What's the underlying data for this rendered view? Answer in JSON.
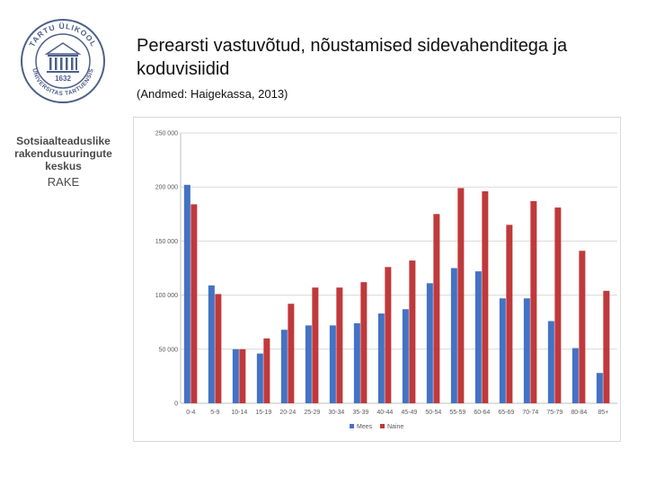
{
  "logo": {
    "ring_text": "TARTU ÜLIKOOL · UNIVERSITAS TARTUENSIS",
    "year": "1632"
  },
  "org": {
    "line1": "Sotsiaalteaduslike",
    "line2": "rakendusuuringute",
    "line3": "keskus",
    "abbr": "RAKE"
  },
  "slide": {
    "title": "Perearsti vastuvõtud, nõustamised sidevahenditega ja koduvisiidid",
    "subtitle": "(Andmed: Haigekassa, 2013)"
  },
  "colors": {
    "mees": "#4472c4",
    "naine": "#c0393b",
    "grid": "#d9d9d9",
    "axis": "#bfbfbf"
  },
  "chart_data": {
    "type": "bar",
    "title": "",
    "xlabel": "",
    "ylabel": "",
    "ylim": [
      0,
      250000
    ],
    "yticks": [
      0,
      50000,
      100000,
      150000,
      200000,
      250000
    ],
    "ytick_labels": [
      "0",
      "50 000",
      "100 000",
      "150 000",
      "200 000",
      "250 000"
    ],
    "categories": [
      "0-4",
      "5-9",
      "10-14",
      "15-19",
      "20-24",
      "25-29",
      "30-34",
      "35-39",
      "40-44",
      "45-49",
      "50-54",
      "55-59",
      "60-64",
      "65-69",
      "70-74",
      "75-79",
      "80-84",
      "85+"
    ],
    "series": [
      {
        "name": "Mees",
        "values": [
          202000,
          109000,
          50000,
          46000,
          68000,
          72000,
          72000,
          74000,
          83000,
          87000,
          111000,
          125000,
          122000,
          97000,
          97000,
          76000,
          51000,
          28000
        ]
      },
      {
        "name": "Naine",
        "values": [
          184000,
          101000,
          50000,
          60000,
          92000,
          107000,
          107000,
          112000,
          126000,
          132000,
          175000,
          199000,
          196000,
          165000,
          187000,
          181000,
          141000,
          104000
        ]
      }
    ],
    "legend": "bottom"
  }
}
